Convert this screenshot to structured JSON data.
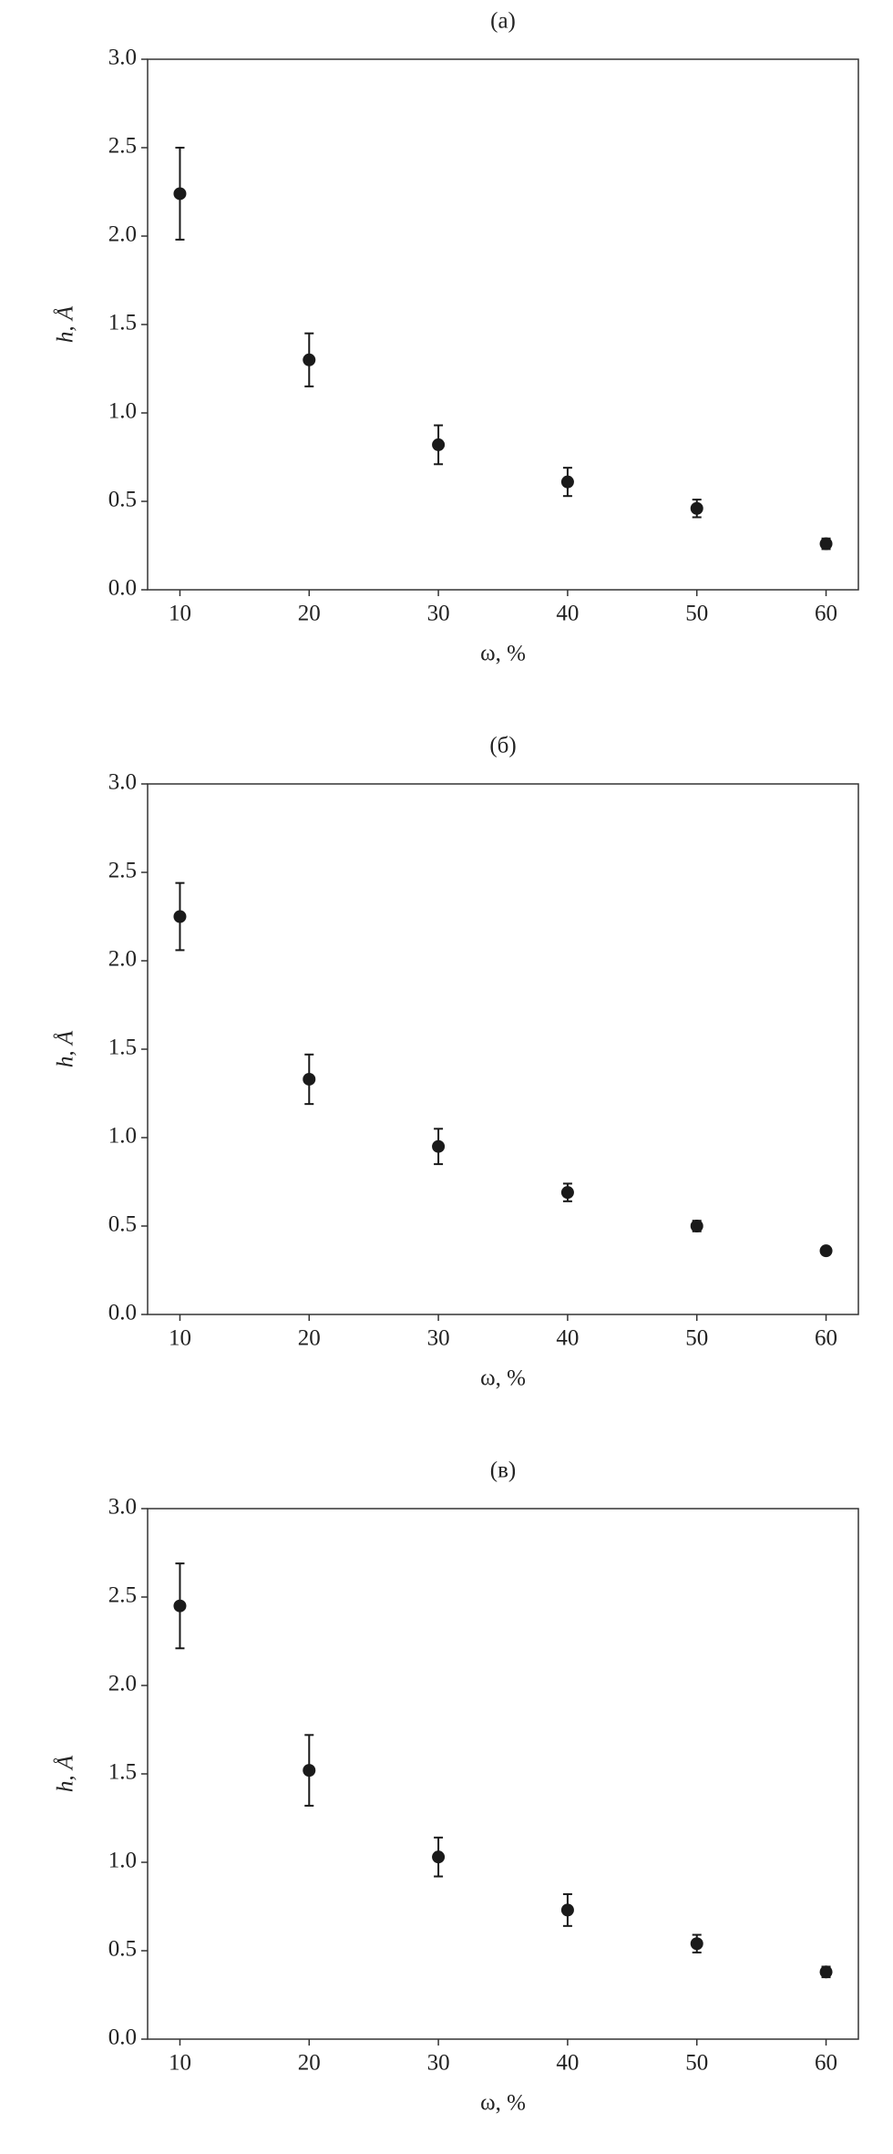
{
  "chart_data": [
    {
      "type": "scatter",
      "title": "(a)",
      "x_label": "ω, %",
      "y_label": "h, Å",
      "xlim": [
        7.5,
        62.5
      ],
      "xticks": [
        10,
        20,
        30,
        40,
        50,
        60
      ],
      "ylim": [
        0,
        3
      ],
      "yticks": [
        {
          "value": 0,
          "label": "0.0"
        },
        0.5,
        {
          "value": 1,
          "label": "1.0"
        },
        1.5,
        {
          "value": 2,
          "label": "2.0"
        },
        2.5,
        {
          "value": 3,
          "label": "3.0"
        }
      ],
      "series": [
        {
          "color": "#1a1a1a",
          "x": [
            10,
            20,
            30,
            40,
            50,
            60
          ],
          "values": [
            2.24,
            1.3,
            0.82,
            0.61,
            0.46,
            0.26
          ],
          "errors": [
            0.26,
            0.15,
            0.11,
            0.08,
            0.05,
            0.03
          ]
        }
      ]
    },
    {
      "type": "scatter",
      "title": "(б)",
      "x_label": "ω, %",
      "y_label": "h, Å",
      "xlim": [
        7.5,
        62.5
      ],
      "xticks": [
        10,
        20,
        30,
        40,
        50,
        60
      ],
      "ylim": [
        0,
        3
      ],
      "yticks": [
        {
          "value": 0,
          "label": "0.0"
        },
        0.5,
        {
          "value": 1,
          "label": "1.0"
        },
        1.5,
        {
          "value": 2,
          "label": "2.0"
        },
        2.5,
        {
          "value": 3,
          "label": "3.0"
        }
      ],
      "series": [
        {
          "color": "#1a1a1a",
          "x": [
            10,
            20,
            30,
            40,
            50,
            60
          ],
          "values": [
            2.25,
            1.33,
            0.95,
            0.69,
            0.5,
            0.36
          ],
          "errors": [
            0.19,
            0.14,
            0.1,
            0.05,
            0.03,
            0.02
          ]
        }
      ]
    },
    {
      "type": "scatter",
      "title": "(в)",
      "x_label": "ω, %",
      "y_label": "h, Å",
      "xlim": [
        7.5,
        62.5
      ],
      "xticks": [
        10,
        20,
        30,
        40,
        50,
        60
      ],
      "ylim": [
        0,
        3
      ],
      "yticks": [
        {
          "value": 0,
          "label": "0.0"
        },
        0.5,
        {
          "value": 1,
          "label": "1.0"
        },
        1.5,
        {
          "value": 2,
          "label": "2.0"
        },
        2.5,
        {
          "value": 3,
          "label": "3.0"
        }
      ],
      "series": [
        {
          "color": "#1a1a1a",
          "x": [
            10,
            20,
            30,
            40,
            50,
            60
          ],
          "values": [
            2.45,
            1.52,
            1.03,
            0.73,
            0.54,
            0.38
          ],
          "errors": [
            0.24,
            0.2,
            0.11,
            0.09,
            0.05,
            0.03
          ]
        }
      ]
    }
  ]
}
